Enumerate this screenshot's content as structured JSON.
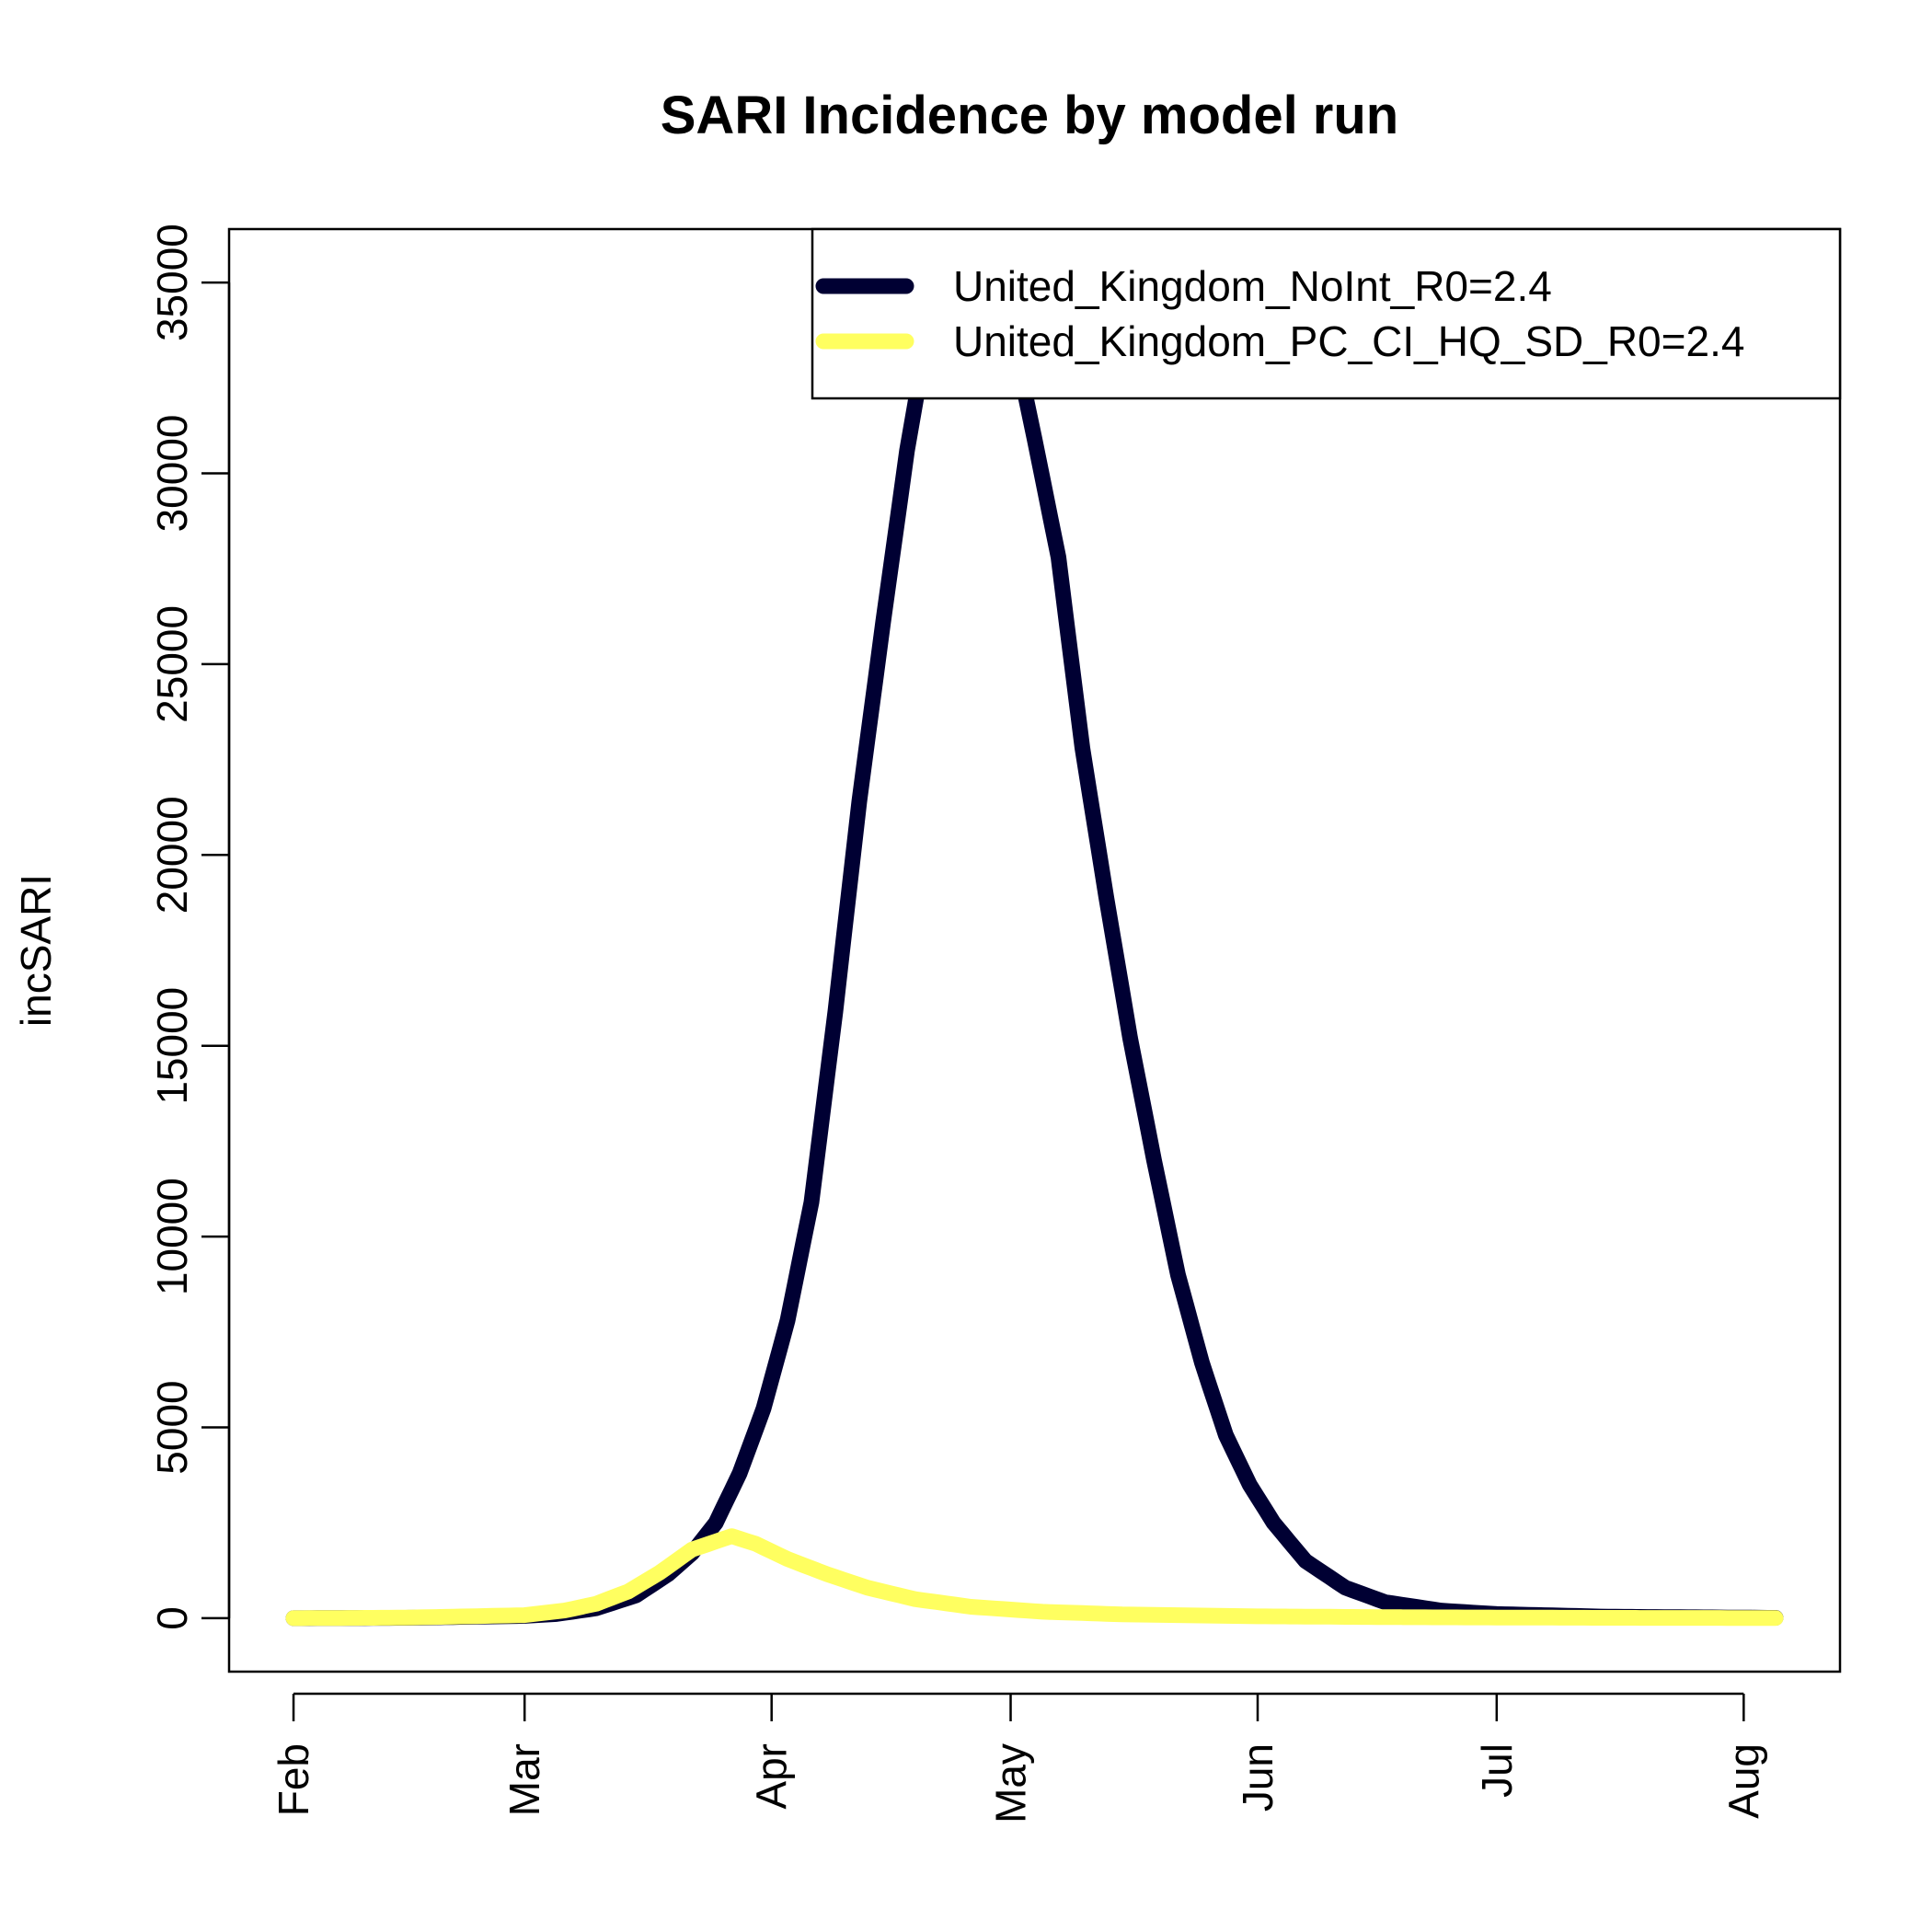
{
  "chart_data": {
    "type": "line",
    "title": "SARI Incidence by model run",
    "xlabel": "",
    "ylabel": "incSARI",
    "x_axis": {
      "type": "date",
      "range": [
        "2020-02-01",
        "2020-08-05"
      ],
      "tick_labels": [
        {
          "date": "2020-02-01",
          "label": "Feb"
        },
        {
          "date": "2020-03-01",
          "label": "Mar"
        },
        {
          "date": "2020-04-01",
          "label": "Apr"
        },
        {
          "date": "2020-05-01",
          "label": "May"
        },
        {
          "date": "2020-06-01",
          "label": "Jun"
        },
        {
          "date": "2020-07-01",
          "label": "Jul"
        },
        {
          "date": "2020-08-01",
          "label": "Aug"
        }
      ]
    },
    "y_axis": {
      "range": [
        -1400,
        36400
      ],
      "ticks": [
        0,
        5000,
        10000,
        15000,
        20000,
        25000,
        30000,
        35000
      ]
    },
    "grid": false,
    "legend": {
      "position": "top-right"
    },
    "series": [
      {
        "name": "United_Kingdom_NoInt_R0=2.4",
        "color": "#000033",
        "points": [
          [
            "2020-02-01",
            0
          ],
          [
            "2020-02-15",
            10
          ],
          [
            "2020-03-01",
            60
          ],
          [
            "2020-03-05",
            110
          ],
          [
            "2020-03-10",
            260
          ],
          [
            "2020-03-15",
            600
          ],
          [
            "2020-03-19",
            1150
          ],
          [
            "2020-03-22",
            1700
          ],
          [
            "2020-03-25",
            2500
          ],
          [
            "2020-03-28",
            3800
          ],
          [
            "2020-03-31",
            5500
          ],
          [
            "2020-04-03",
            7800
          ],
          [
            "2020-04-06",
            10900
          ],
          [
            "2020-04-09",
            15900
          ],
          [
            "2020-04-12",
            21400
          ],
          [
            "2020-04-15",
            26100
          ],
          [
            "2020-04-18",
            30600
          ],
          [
            "2020-04-20",
            33000
          ],
          [
            "2020-04-22",
            34900
          ],
          [
            "2020-04-25",
            35600
          ],
          [
            "2020-04-28",
            35100
          ],
          [
            "2020-05-02",
            32900
          ],
          [
            "2020-05-04",
            30900
          ],
          [
            "2020-05-07",
            27800
          ],
          [
            "2020-05-10",
            22800
          ],
          [
            "2020-05-13",
            18900
          ],
          [
            "2020-05-16",
            15200
          ],
          [
            "2020-05-19",
            12000
          ],
          [
            "2020-05-22",
            9000
          ],
          [
            "2020-05-25",
            6700
          ],
          [
            "2020-05-28",
            4800
          ],
          [
            "2020-05-31",
            3500
          ],
          [
            "2020-06-03",
            2500
          ],
          [
            "2020-06-07",
            1500
          ],
          [
            "2020-06-12",
            800
          ],
          [
            "2020-06-17",
            420
          ],
          [
            "2020-06-24",
            200
          ],
          [
            "2020-07-01",
            110
          ],
          [
            "2020-07-15",
            40
          ],
          [
            "2020-08-05",
            10
          ]
        ]
      },
      {
        "name": "United_Kingdom_PC_CI_HQ_SD_R0=2.4",
        "color": "#FFFF60",
        "points": [
          [
            "2020-02-01",
            0
          ],
          [
            "2020-02-15",
            15
          ],
          [
            "2020-03-01",
            80
          ],
          [
            "2020-03-06",
            200
          ],
          [
            "2020-03-10",
            380
          ],
          [
            "2020-03-14",
            700
          ],
          [
            "2020-03-18",
            1200
          ],
          [
            "2020-03-22",
            1800
          ],
          [
            "2020-03-27",
            2150
          ],
          [
            "2020-03-30",
            1950
          ],
          [
            "2020-04-03",
            1550
          ],
          [
            "2020-04-08",
            1150
          ],
          [
            "2020-04-13",
            800
          ],
          [
            "2020-04-19",
            500
          ],
          [
            "2020-04-26",
            300
          ],
          [
            "2020-05-05",
            170
          ],
          [
            "2020-05-15",
            100
          ],
          [
            "2020-06-01",
            50
          ],
          [
            "2020-06-20",
            25
          ],
          [
            "2020-07-15",
            10
          ],
          [
            "2020-08-05",
            5
          ]
        ]
      }
    ]
  }
}
